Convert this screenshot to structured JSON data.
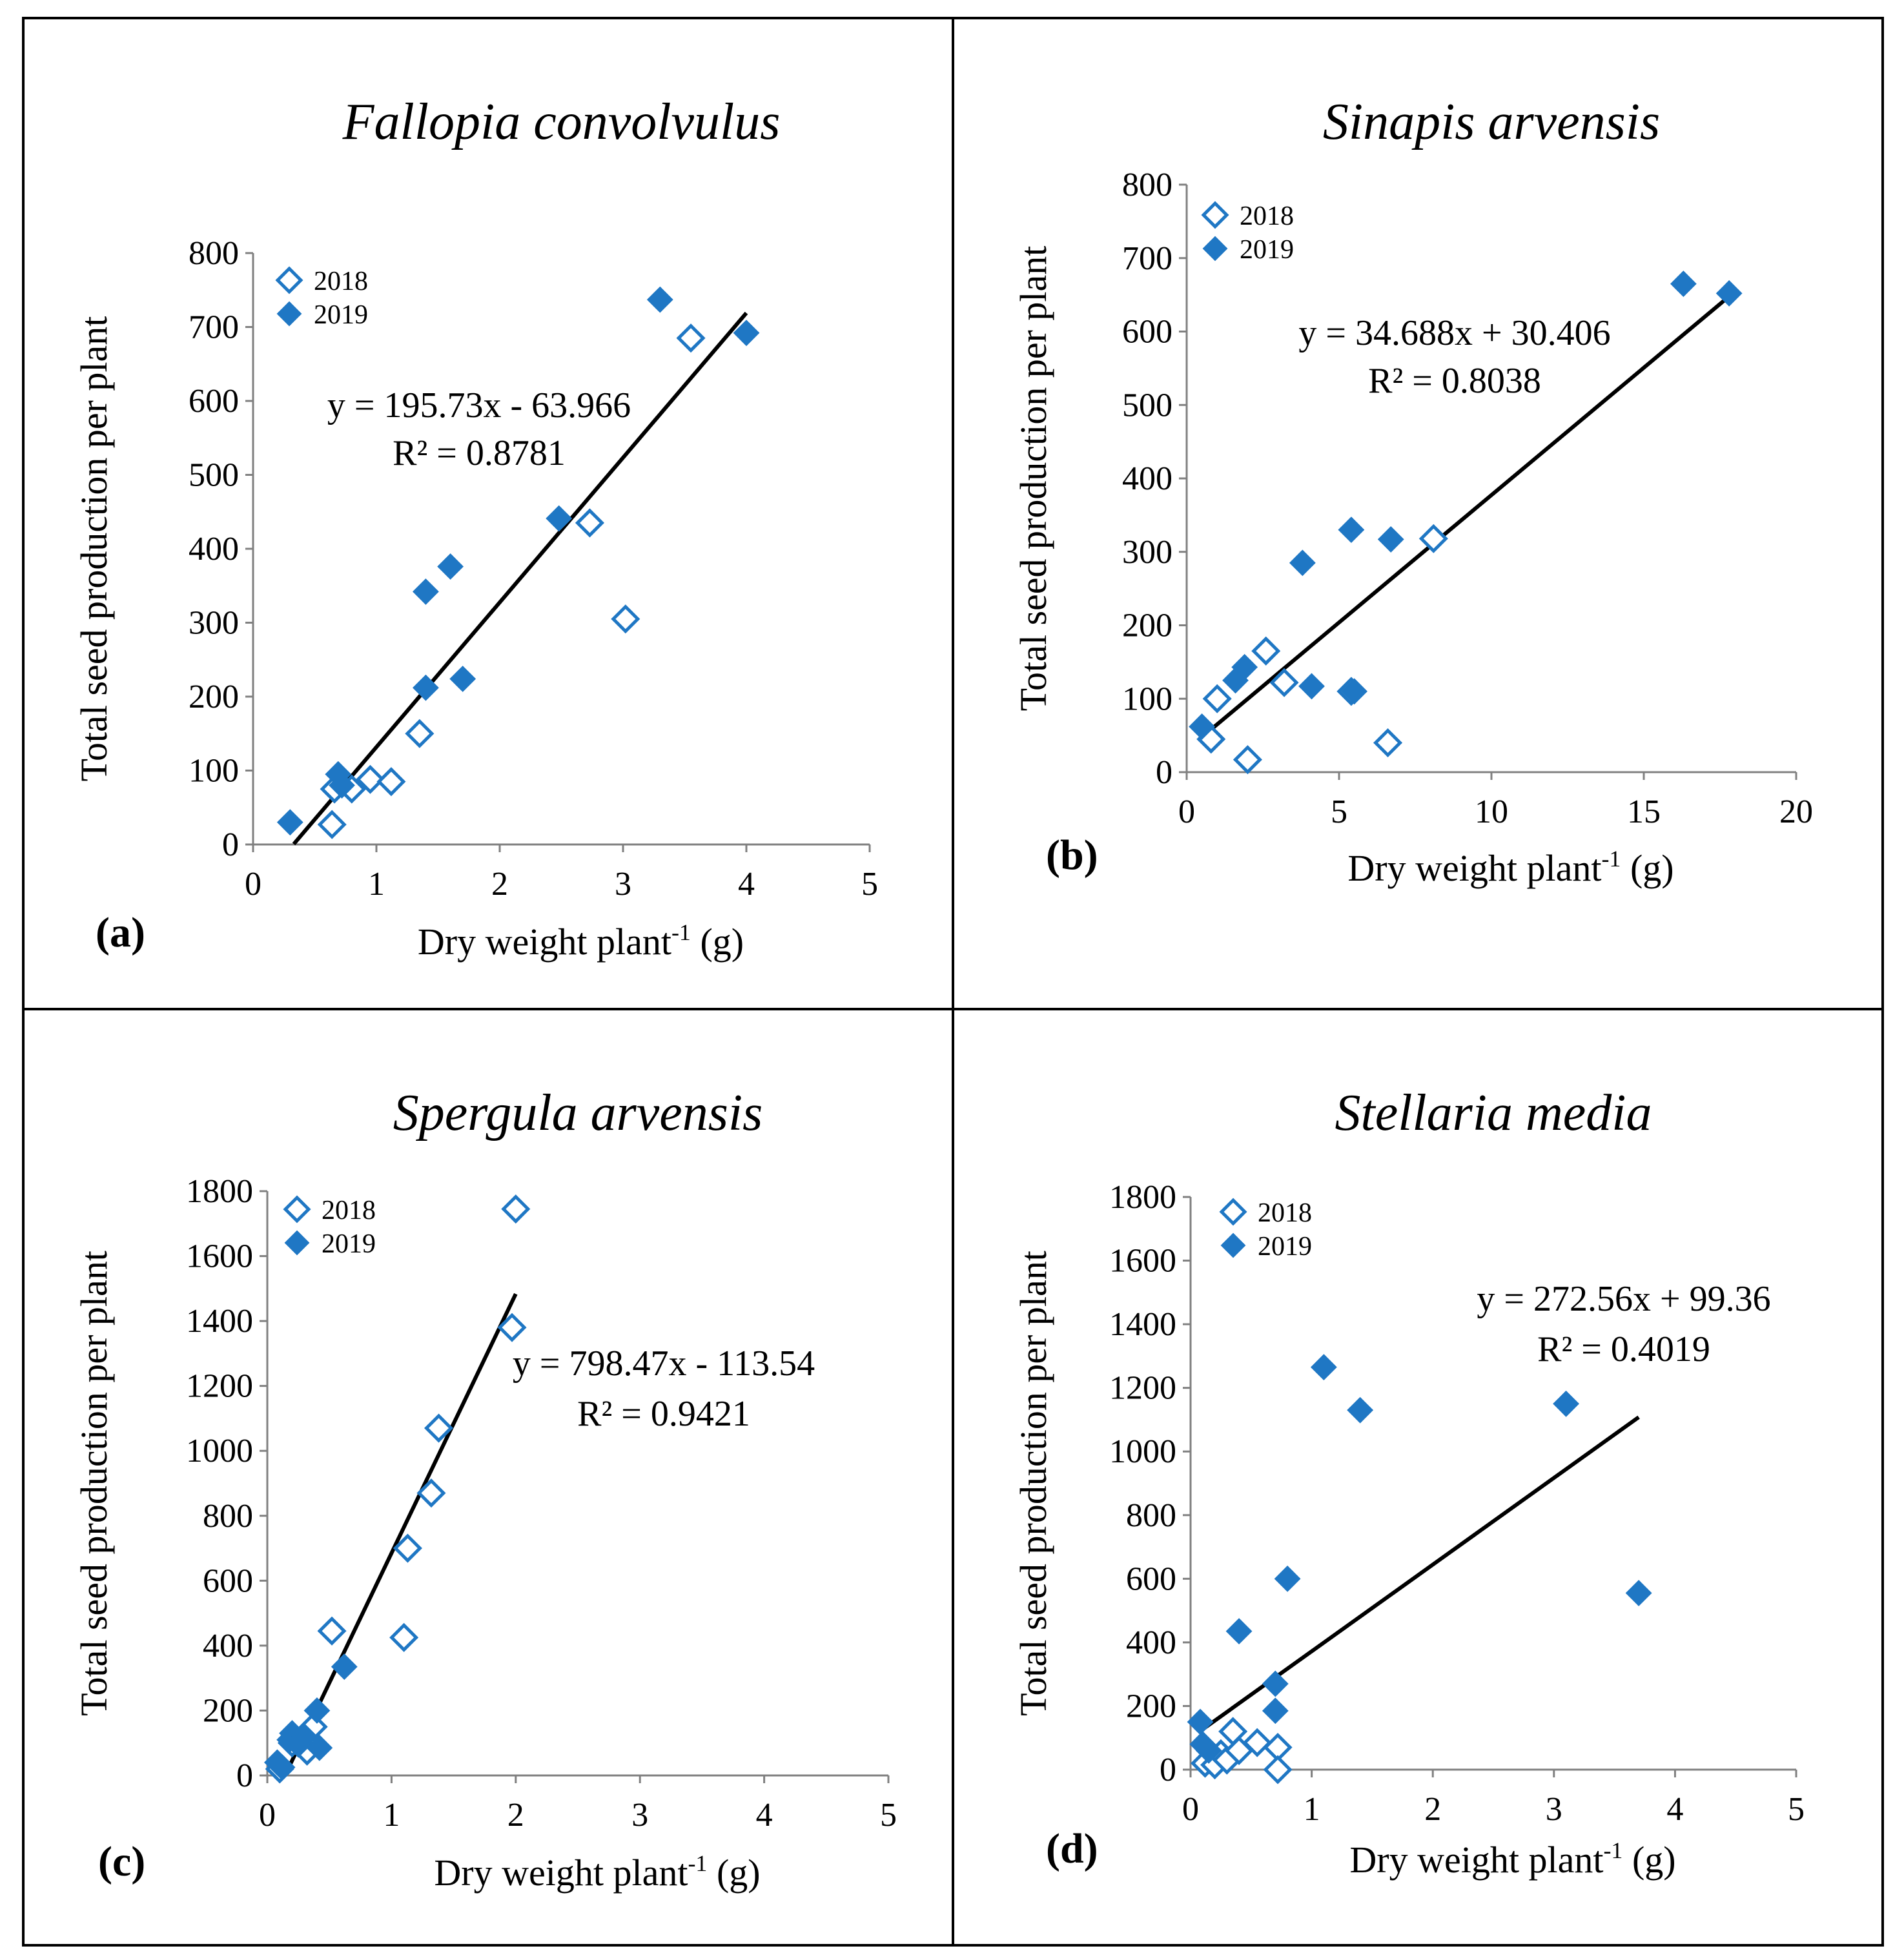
{
  "figure": {
    "colors": {
      "marker": "#1f77c4",
      "trendline": "#000000",
      "axis": "#808080",
      "border": "#000000"
    }
  },
  "chart_data": [
    {
      "type": "scatter",
      "panel": "(a)",
      "title": "Fallopia convolvulus",
      "xlabel_main": "Dry weight plant",
      "xlabel_sup": "-1",
      "xlabel_unit": " (g)",
      "ylabel": "Total seed production per plant",
      "xlim": [
        0,
        5
      ],
      "ylim": [
        0,
        800
      ],
      "xticks": [
        0,
        1,
        2,
        3,
        4,
        5
      ],
      "yticks": [
        0,
        100,
        200,
        300,
        400,
        500,
        600,
        700,
        800
      ],
      "legend": [
        "2018",
        "2019"
      ],
      "series": [
        {
          "name": "2018",
          "style": "open-diamond",
          "points": [
            [
              0.64,
              27
            ],
            [
              0.66,
              75
            ],
            [
              0.8,
              75
            ],
            [
              0.95,
              88
            ],
            [
              1.12,
              85
            ],
            [
              1.35,
              150
            ],
            [
              2.73,
              435
            ],
            [
              3.02,
              305
            ],
            [
              3.55,
              685
            ]
          ]
        },
        {
          "name": "2019",
          "style": "filled-diamond",
          "points": [
            [
              0.3,
              30
            ],
            [
              0.69,
              95
            ],
            [
              0.72,
              80
            ],
            [
              1.4,
              342
            ],
            [
              1.4,
              212
            ],
            [
              1.6,
              376
            ],
            [
              1.7,
              224
            ],
            [
              2.48,
              441
            ],
            [
              3.3,
              737
            ],
            [
              4.0,
              692
            ]
          ]
        }
      ],
      "trendline": {
        "slope": 195.73,
        "intercept": -63.966,
        "x_range": [
          0.33,
          4.0
        ]
      },
      "equation": "y = 195.73x - 63.966",
      "r2": "R² = 0.8781"
    },
    {
      "type": "scatter",
      "panel": "(b)",
      "title": "Sinapis arvensis",
      "xlabel_main": "Dry weight plant",
      "xlabel_sup": "-1",
      "xlabel_unit": " (g)",
      "ylabel": "Total seed production per plant",
      "xlim": [
        0,
        20
      ],
      "ylim": [
        0,
        800
      ],
      "xticks": [
        0,
        5,
        10,
        15,
        20
      ],
      "yticks": [
        0,
        100,
        200,
        300,
        400,
        500,
        600,
        700,
        800
      ],
      "legend": [
        "2018",
        "2019"
      ],
      "series": [
        {
          "name": "2018",
          "style": "open-diamond",
          "points": [
            [
              0.8,
              45
            ],
            [
              1.0,
              100
            ],
            [
              2.0,
              17
            ],
            [
              2.6,
              165
            ],
            [
              3.2,
              122
            ],
            [
              5.4,
              110
            ],
            [
              6.6,
              40
            ],
            [
              8.1,
              318
            ]
          ]
        },
        {
          "name": "2019",
          "style": "filled-diamond",
          "points": [
            [
              0.5,
              62
            ],
            [
              1.6,
              125
            ],
            [
              1.9,
              143
            ],
            [
              3.8,
              285
            ],
            [
              4.1,
              117
            ],
            [
              5.4,
              330
            ],
            [
              5.5,
              110
            ],
            [
              6.7,
              317
            ],
            [
              16.3,
              665
            ],
            [
              17.8,
              652
            ]
          ]
        }
      ],
      "trendline": {
        "slope": 34.688,
        "intercept": 30.406,
        "x_range": [
          0.5,
          17.8
        ]
      },
      "equation": "y = 34.688x + 30.406",
      "r2": "R² = 0.8038"
    },
    {
      "type": "scatter",
      "panel": "(c)",
      "title": "Spergula arvensis",
      "xlabel_main": "Dry weight plant",
      "xlabel_sup": "-1",
      "xlabel_unit": " (g)",
      "ylabel": "Total seed production per plant",
      "xlim": [
        0,
        5
      ],
      "ylim": [
        0,
        1800
      ],
      "xticks": [
        0,
        1,
        2,
        3,
        4,
        5
      ],
      "yticks": [
        0,
        200,
        400,
        600,
        800,
        1000,
        1200,
        1400,
        1600,
        1800
      ],
      "legend": [
        "2018",
        "2019"
      ],
      "series": [
        {
          "name": "2018",
          "style": "open-diamond",
          "points": [
            [
              0.1,
              20
            ],
            [
              0.2,
              100
            ],
            [
              0.32,
              75
            ],
            [
              0.37,
              150
            ],
            [
              0.52,
              445
            ],
            [
              1.1,
              425
            ],
            [
              1.13,
              700
            ],
            [
              1.32,
              870
            ],
            [
              1.38,
              1070
            ],
            [
              1.97,
              1380
            ],
            [
              2.0,
              1745
            ]
          ]
        },
        {
          "name": "2019",
          "style": "filled-diamond",
          "points": [
            [
              0.08,
              40
            ],
            [
              0.12,
              25
            ],
            [
              0.18,
              110
            ],
            [
              0.2,
              130
            ],
            [
              0.25,
              95
            ],
            [
              0.3,
              120
            ],
            [
              0.4,
              200
            ],
            [
              0.42,
              85
            ],
            [
              0.62,
              335
            ]
          ]
        }
      ],
      "trendline": {
        "slope": 798.47,
        "intercept": -113.54,
        "x_range": [
          0.142,
          2.0
        ]
      },
      "equation": "y = 798.47x - 113.54",
      "r2": "R² = 0.9421"
    },
    {
      "type": "scatter",
      "panel": "(d)",
      "title": "Stellaria media",
      "xlabel_main": "Dry weight plant",
      "xlabel_sup": "-1",
      "xlabel_unit": " (g)",
      "ylabel": "Total seed production per plant",
      "xlim": [
        0,
        5
      ],
      "ylim": [
        0,
        1800
      ],
      "xticks": [
        0,
        1,
        2,
        3,
        4,
        5
      ],
      "yticks": [
        0,
        200,
        400,
        600,
        800,
        1000,
        1200,
        1400,
        1600,
        1800
      ],
      "legend": [
        "2018",
        "2019"
      ],
      "series": [
        {
          "name": "2018",
          "style": "open-diamond",
          "points": [
            [
              0.12,
              20
            ],
            [
              0.2,
              15
            ],
            [
              0.25,
              50
            ],
            [
              0.3,
              30
            ],
            [
              0.35,
              120
            ],
            [
              0.4,
              60
            ],
            [
              0.55,
              85
            ],
            [
              0.72,
              70
            ],
            [
              0.72,
              0
            ]
          ]
        },
        {
          "name": "2019",
          "style": "filled-diamond",
          "points": [
            [
              0.08,
              150
            ],
            [
              0.1,
              80
            ],
            [
              0.15,
              60
            ],
            [
              0.4,
              435
            ],
            [
              0.7,
              270
            ],
            [
              0.7,
              185
            ],
            [
              0.8,
              600
            ],
            [
              1.1,
              1265
            ],
            [
              1.4,
              1130
            ],
            [
              3.1,
              1150
            ],
            [
              3.7,
              555
            ]
          ]
        }
      ],
      "trendline": {
        "slope": 272.56,
        "intercept": 99.36,
        "x_range": [
          0.1,
          3.7
        ]
      },
      "equation": "y = 272.56x + 99.36",
      "r2": "R² = 0.4019"
    }
  ]
}
